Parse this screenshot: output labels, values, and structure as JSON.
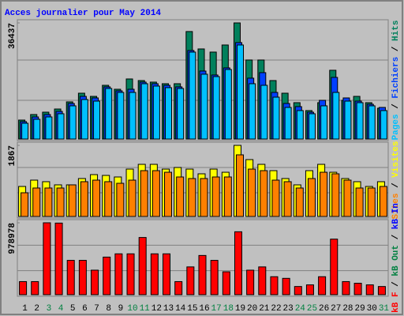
{
  "chart_data": {
    "type": "bar",
    "title": "Acces journalier pour May 2014",
    "categories": [
      "1",
      "2",
      "3",
      "4",
      "5",
      "6",
      "7",
      "8",
      "9",
      "10",
      "11",
      "12",
      "13",
      "14",
      "15",
      "16",
      "17",
      "18",
      "19",
      "20",
      "21",
      "22",
      "23",
      "24",
      "25",
      "26",
      "27",
      "28",
      "29",
      "30",
      "31"
    ],
    "weekend_indices": [
      2,
      3,
      9,
      10,
      16,
      17,
      23,
      24,
      30
    ],
    "weekend_color": "#008040",
    "weekday_color": "#000000",
    "legend_separator": " / ",
    "panels": [
      {
        "ylim": [
          0,
          36437
        ],
        "yticks": [
          36437
        ],
        "series": [
          {
            "name": "Hits",
            "color": "#00805c",
            "values": [
              5950,
              7690,
              8430,
              9420,
              11660,
              14380,
              13390,
              16860,
              15620,
              18850,
              18350,
              17860,
              17360,
              17360,
              33730,
              28270,
              27280,
              29510,
              36437,
              24800,
              24800,
              18350,
              14380,
              11410,
              8930,
              11410,
              21580,
              12150,
              13390,
              11410,
              9670
            ]
          },
          {
            "name": "Fichiers",
            "color": "#0040ff",
            "values": [
              5460,
              6940,
              7690,
              8680,
              11160,
              13390,
              12900,
              16370,
              15130,
              15620,
              17860,
              17360,
              16860,
              16370,
              27780,
              21330,
              20090,
              22320,
              30260,
              19100,
              20830,
              14630,
              11160,
              10170,
              8430,
              12150,
              19340,
              12900,
              11900,
              10910,
              9920
            ]
          },
          {
            "name": "Pages",
            "color": "#00c0ff",
            "values": [
              4960,
              6200,
              6940,
              7940,
              10420,
              12400,
              11900,
              15870,
              14630,
              14630,
              17360,
              16620,
              16120,
              15870,
              27280,
              20340,
              19590,
              21820,
              29510,
              17360,
              16860,
              13140,
              9920,
              8930,
              7940,
              10420,
              14630,
              11900,
              11410,
              10420,
              8930
            ]
          }
        ]
      },
      {
        "ylim": [
          0,
          1867
        ],
        "yticks": [
          1867
        ],
        "series": [
          {
            "name": "Visites",
            "color": "#ffff00",
            "values": [
              788,
              954,
              913,
              830,
              830,
              996,
              1099,
              1078,
              1037,
              1244,
              1369,
              1369,
              1244,
              1286,
              1244,
              1120,
              1244,
              1161,
              1867,
              1493,
              1369,
              1203,
              996,
              830,
              1203,
              1369,
              1161,
              996,
              913,
              788,
              913
            ]
          },
          {
            "name": "Sites",
            "color": "#ff8000",
            "values": [
              622,
              747,
              747,
              747,
              830,
              913,
              954,
              913,
              871,
              954,
              1203,
              1203,
              1161,
              1037,
              996,
              996,
              1037,
              1037,
              1618,
              1244,
              1203,
              954,
              913,
              747,
              996,
              1161,
              1120,
              954,
              747,
              747,
              788
            ]
          }
        ]
      },
      {
        "ylim": [
          0,
          978978
        ],
        "yticks": [
          978978
        ],
        "series": [
          {
            "name": "kB F",
            "color": "#ff0000",
            "values": [
              178000,
              178000,
              978978,
              975000,
              467250,
              467250,
              333750,
              511750,
              556250,
              556250,
              778750,
              556250,
              556250,
              178000,
              378250,
              534000,
              467250,
              311500,
              856630,
              333750,
              378250,
              244750,
              222500,
              111250,
              133500,
              244750,
              756500,
              178000,
              155750,
              133500,
              111250
            ]
          }
        ],
        "legend_extra": [
          {
            "name": "kB Out",
            "color": "#008040"
          },
          {
            "name": "kB In",
            "color": "#0000ff"
          }
        ]
      }
    ]
  }
}
